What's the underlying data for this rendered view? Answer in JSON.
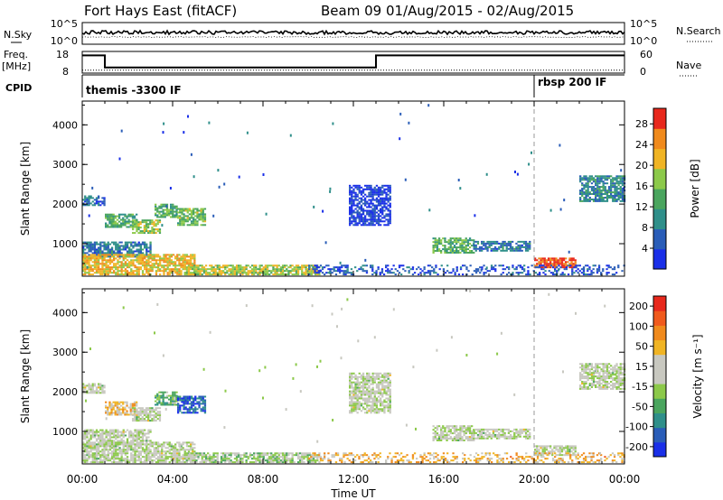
{
  "header": {
    "station": "Fort Hays East (fitACF)",
    "beam_date": "Beam 09 01/Aug/2015 - 02/Aug/2015"
  },
  "time_axis": {
    "labels": [
      "00:00",
      "04:00",
      "08:00",
      "12:00",
      "16:00",
      "20:00",
      "00:00"
    ],
    "hours": [
      0,
      4,
      8,
      12,
      16,
      20,
      24
    ],
    "xlabel": "Time UT",
    "range_hours": [
      0,
      24
    ]
  },
  "nsky_panel": {
    "left_label": "N.Sky",
    "right_label": "N.Search",
    "left_ticks": [
      "10^5",
      "10^0"
    ],
    "right_ticks": [
      "10^5",
      "10^0"
    ],
    "log_scale": true
  },
  "freq_panel": {
    "left_label": "Freq.",
    "left_unit": "[MHz]",
    "left_ticks": [
      "18",
      "8"
    ],
    "right_label": "Nave",
    "right_ticks": [
      "60",
      "0"
    ],
    "freq_steps": [
      {
        "t": 0,
        "mhz": 16.2
      },
      {
        "t": 1.0,
        "mhz": 10.6
      },
      {
        "t": 13.0,
        "mhz": 16.2
      },
      {
        "t": 24,
        "mhz": 16.2
      }
    ],
    "nave_level": 8
  },
  "cpid_panel": {
    "label": "CPID",
    "segments": [
      {
        "label": "themis -3300 IF",
        "start": 0
      },
      {
        "label": "rbsp 200 IF",
        "start": 20.0
      }
    ]
  },
  "chart_data": [
    {
      "type": "heatmap",
      "panel": "power",
      "ylabel": "Slant Range [km]",
      "yticks": [
        1000,
        2000,
        3000,
        4000
      ],
      "ylim": [
        180,
        4600
      ],
      "colorbar": {
        "label": "Power [dB]",
        "ticks": [
          4,
          8,
          12,
          16,
          20,
          24,
          28
        ],
        "range": [
          0,
          31
        ],
        "colors": [
          "#1a2fe8",
          "#2a5db8",
          "#2f8f8a",
          "#4aa55e",
          "#8cc94a",
          "#f0b424",
          "#f08a1c",
          "#e8281c"
        ]
      },
      "regions": [
        {
          "t0": 0.0,
          "t1": 1.0,
          "r0": 1950,
          "r1": 2200,
          "level": 0.2
        },
        {
          "t0": 1.0,
          "t1": 2.4,
          "r0": 1400,
          "r1": 1750,
          "level": 0.42
        },
        {
          "t0": 2.2,
          "t1": 3.4,
          "r0": 1250,
          "r1": 1600,
          "level": 0.55
        },
        {
          "t0": 3.2,
          "t1": 4.2,
          "r0": 1650,
          "r1": 2000,
          "level": 0.42
        },
        {
          "t0": 4.2,
          "t1": 5.4,
          "r0": 1450,
          "r1": 1900,
          "level": 0.5
        },
        {
          "t0": 0.0,
          "t1": 3.0,
          "r0": 650,
          "r1": 1050,
          "level": 0.25
        },
        {
          "t0": 0.0,
          "t1": 5.0,
          "r0": 200,
          "r1": 700,
          "level": 0.7
        },
        {
          "t0": 4.5,
          "t1": 10.5,
          "r0": 200,
          "r1": 450,
          "level": 0.6
        },
        {
          "t0": 11.8,
          "t1": 13.6,
          "r0": 1450,
          "r1": 2450,
          "level": 0.1
        },
        {
          "t0": 15.5,
          "t1": 17.3,
          "r0": 750,
          "r1": 1150,
          "level": 0.45
        },
        {
          "t0": 17.3,
          "t1": 19.8,
          "r0": 800,
          "r1": 1050,
          "level": 0.25
        },
        {
          "t0": 20.0,
          "t1": 21.8,
          "r0": 380,
          "r1": 650,
          "level": 0.92
        },
        {
          "t0": 22.0,
          "t1": 24.0,
          "r0": 2050,
          "r1": 2700,
          "level": 0.3
        },
        {
          "t0": 10.0,
          "t1": 24.0,
          "r0": 200,
          "r1": 450,
          "level": 0.15
        }
      ]
    },
    {
      "type": "heatmap",
      "panel": "velocity",
      "ylabel": "Slant Range [km]",
      "yticks": [
        1000,
        2000,
        3000,
        4000
      ],
      "ylim": [
        180,
        4600
      ],
      "colorbar": {
        "label": "Velocity [m s⁻¹]",
        "ticks": [
          "200",
          "100",
          "50",
          "15",
          "-15",
          "-50",
          "-100",
          "-200"
        ],
        "colors": [
          "#1a2fe8",
          "#2a5db8",
          "#2f8f8a",
          "#4aa55e",
          "#8cc94a",
          "#c8c8c0",
          "#c8c8c0",
          "#f0b424",
          "#f08a1c",
          "#f05a1c",
          "#e8281c"
        ]
      },
      "regions": [
        {
          "t0": 0.0,
          "t1": 1.0,
          "r0": 1950,
          "r1": 2200,
          "level": 0.5
        },
        {
          "t0": 1.0,
          "t1": 2.4,
          "r0": 1400,
          "r1": 1750,
          "level": 0.65
        },
        {
          "t0": 2.2,
          "t1": 3.4,
          "r0": 1250,
          "r1": 1600,
          "level": 0.5
        },
        {
          "t0": 3.2,
          "t1": 4.2,
          "r0": 1650,
          "r1": 2000,
          "level": 0.36
        },
        {
          "t0": 4.2,
          "t1": 5.4,
          "r0": 1450,
          "r1": 1900,
          "level": 0.14
        },
        {
          "t0": 0.0,
          "t1": 3.0,
          "r0": 650,
          "r1": 1050,
          "level": 0.5
        },
        {
          "t0": 0.0,
          "t1": 5.0,
          "r0": 200,
          "r1": 700,
          "level": 0.5
        },
        {
          "t0": 4.5,
          "t1": 10.5,
          "r0": 200,
          "r1": 450,
          "level": 0.45
        },
        {
          "t0": 11.8,
          "t1": 13.6,
          "r0": 1450,
          "r1": 2450,
          "level": 0.5
        },
        {
          "t0": 15.5,
          "t1": 17.3,
          "r0": 750,
          "r1": 1150,
          "level": 0.5
        },
        {
          "t0": 17.3,
          "t1": 19.8,
          "r0": 800,
          "r1": 1050,
          "level": 0.5
        },
        {
          "t0": 20.0,
          "t1": 21.8,
          "r0": 380,
          "r1": 650,
          "level": 0.5
        },
        {
          "t0": 22.0,
          "t1": 24.0,
          "r0": 2050,
          "r1": 2700,
          "level": 0.5
        },
        {
          "t0": 10.0,
          "t1": 24.0,
          "r0": 200,
          "r1": 450,
          "level": 0.68
        }
      ]
    }
  ]
}
